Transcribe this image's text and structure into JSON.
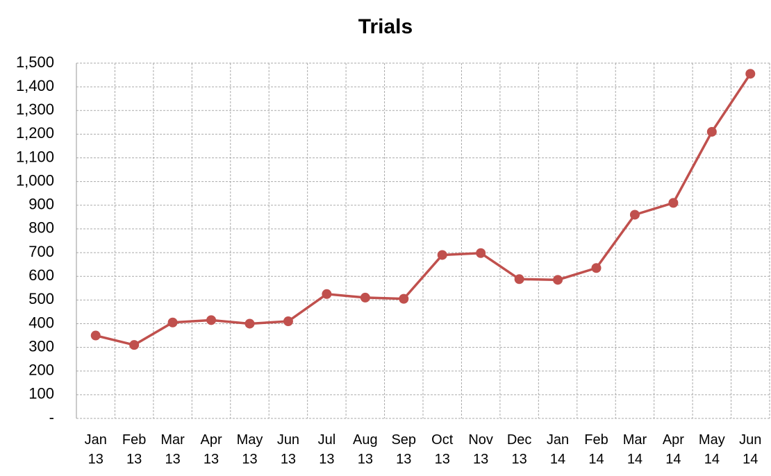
{
  "chart_data": {
    "type": "line",
    "title": "Trials",
    "categories": [
      "Jan 13",
      "Feb 13",
      "Mar 13",
      "Apr 13",
      "May 13",
      "Jun 13",
      "Jul 13",
      "Aug 13",
      "Sep 13",
      "Oct 13",
      "Nov 13",
      "Dec 13",
      "Jan 14",
      "Feb 14",
      "Mar 14",
      "Apr 14",
      "May 14",
      "Jun 14"
    ],
    "values": [
      350,
      310,
      405,
      415,
      400,
      410,
      525,
      510,
      505,
      690,
      698,
      588,
      585,
      635,
      860,
      910,
      1210,
      1455
    ],
    "color": "#c0504d",
    "ylim": [
      0,
      1500
    ],
    "yticks": [
      {
        "value": 0,
        "label": "-"
      },
      100,
      200,
      300,
      400,
      500,
      600,
      700,
      800,
      900,
      {
        "value": 1000,
        "label": "1,000"
      },
      {
        "value": 1100,
        "label": "1,100"
      },
      {
        "value": 1200,
        "label": "1,200"
      },
      {
        "value": 1300,
        "label": "1,300"
      },
      {
        "value": 1400,
        "label": "1,400"
      },
      {
        "value": 1500,
        "label": "1,500"
      }
    ],
    "grid": true
  }
}
